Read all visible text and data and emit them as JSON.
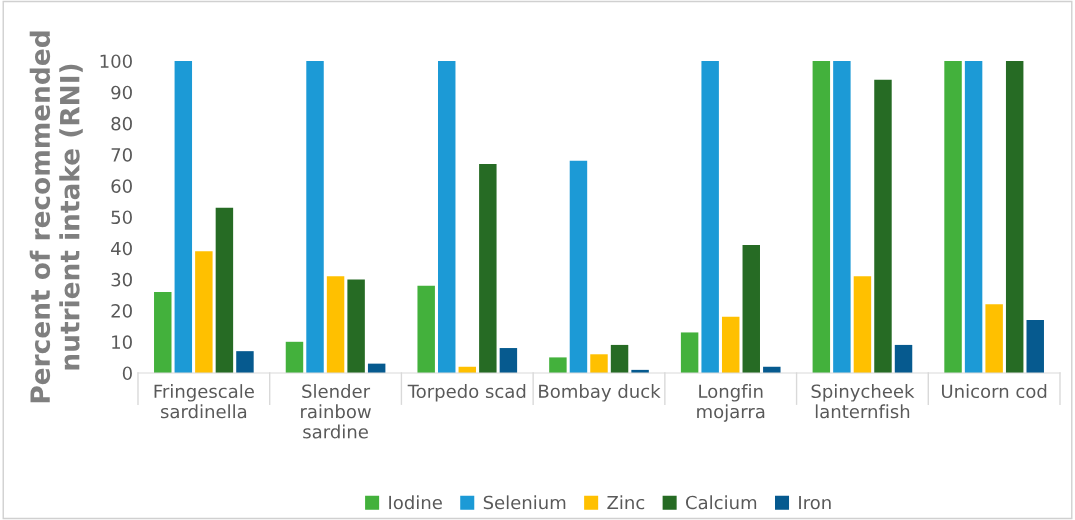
{
  "chart_data": {
    "type": "bar",
    "ylabel": "Percent of recommended nutrient intake (RNI)",
    "categories": [
      "Fringescale sardinella",
      "Slender rainbow sardine",
      "Torpedo scad",
      "Bombay duck",
      "Longfin mojarra",
      "Spinycheek lanternfish",
      "Unicorn cod"
    ],
    "series": [
      {
        "name": "Iodine",
        "color": "#43b13c",
        "values": [
          26,
          10,
          28,
          5,
          13,
          100,
          100
        ]
      },
      {
        "name": "Selenium",
        "color": "#1c9ad6",
        "values": [
          100,
          100,
          100,
          68,
          100,
          100,
          100
        ]
      },
      {
        "name": "Zinc",
        "color": "#ffc000",
        "values": [
          39,
          31,
          2,
          6,
          18,
          31,
          22
        ]
      },
      {
        "name": "Calcium",
        "color": "#266b24",
        "values": [
          53,
          30,
          67,
          9,
          41,
          94,
          100
        ]
      },
      {
        "name": "Iron",
        "color": "#065a8f",
        "values": [
          7,
          3,
          8,
          1,
          2,
          9,
          17
        ]
      }
    ],
    "ylim": [
      0,
      100
    ],
    "yticks": [
      0,
      10,
      20,
      30,
      40,
      50,
      60,
      70,
      80,
      90,
      100
    ],
    "grid": false,
    "legend": "bottom"
  }
}
